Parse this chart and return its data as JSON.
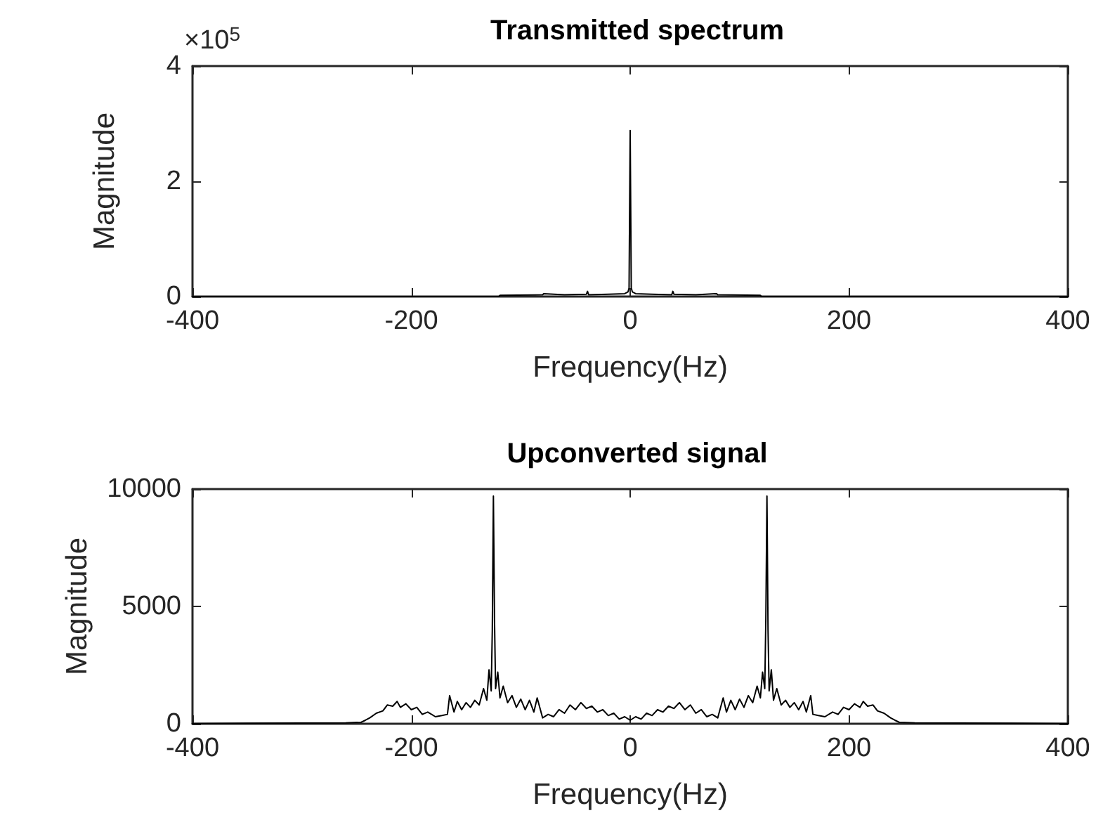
{
  "chart_data": [
    {
      "type": "line",
      "title": "Transmitted spectrum",
      "xlabel": "Frequency(Hz)",
      "ylabel": "Magnitude",
      "annotations": [
        "×10$^{5}$"
      ],
      "x": [
        -400,
        -120,
        -119,
        -80,
        -79,
        -60,
        -40,
        -39,
        -38,
        -20,
        -5,
        -2,
        -1,
        0,
        1,
        2,
        5,
        20,
        38,
        39,
        40,
        60,
        79,
        80,
        119,
        120,
        400
      ],
      "series": [
        {
          "color": "#000000",
          "values": [
            0,
            0,
            0.02,
            0.03,
            0.05,
            0.03,
            0.04,
            0.09,
            0.03,
            0.04,
            0.05,
            0.08,
            0.15,
            2.88,
            0.15,
            0.08,
            0.05,
            0.04,
            0.03,
            0.09,
            0.04,
            0.03,
            0.05,
            0.03,
            0.02,
            0,
            0
          ]
        }
      ],
      "xlim": [
        -400,
        400
      ],
      "xticks": [
        -400,
        -200,
        0,
        200,
        400
      ],
      "ylim": [
        0,
        4
      ],
      "yticks": [
        0,
        2,
        4
      ],
      "grid": false,
      "marker": "none"
    },
    {
      "type": "line",
      "title": "Upconverted signal",
      "xlabel": "Frequency(Hz)",
      "ylabel": "Magnitude",
      "x": [
        -400,
        -350,
        -300,
        -260,
        -246,
        -242,
        -238,
        -232,
        -226,
        -222,
        -217,
        -213,
        -210,
        -205,
        -200,
        -195,
        -190,
        -185,
        -178,
        -172,
        -167,
        -165,
        -161,
        -158,
        -154,
        -150,
        -146,
        -142,
        -138,
        -134,
        -131,
        -129,
        -127,
        -126,
        -125,
        -124,
        -123,
        -121,
        -119,
        -116,
        -112,
        -108,
        -104,
        -100,
        -96,
        -92,
        -88,
        -85,
        -80,
        -75,
        -70,
        -65,
        -60,
        -55,
        -50,
        -45,
        -40,
        -35,
        -30,
        -25,
        -20,
        -15,
        -10,
        -5,
        0,
        5,
        10,
        15,
        20,
        25,
        30,
        35,
        40,
        45,
        50,
        55,
        60,
        65,
        70,
        75,
        80,
        85,
        88,
        92,
        96,
        100,
        104,
        108,
        112,
        116,
        119,
        121,
        123,
        124,
        125,
        126,
        127,
        129,
        131,
        134,
        138,
        142,
        146,
        150,
        154,
        158,
        161,
        165,
        167,
        172,
        178,
        185,
        190,
        195,
        200,
        205,
        210,
        213,
        217,
        222,
        226,
        232,
        238,
        242,
        246,
        260,
        300,
        350,
        400
      ],
      "series": [
        {
          "color": "#000000",
          "values": [
            10,
            20,
            30,
            40,
            60,
            150,
            250,
            450,
            550,
            800,
            750,
            950,
            700,
            850,
            600,
            700,
            400,
            500,
            300,
            350,
            400,
            1200,
            500,
            950,
            600,
            900,
            700,
            1000,
            800,
            1500,
            1000,
            2300,
            1400,
            4000,
            9700,
            4500,
            1500,
            2200,
            1100,
            1600,
            900,
            1200,
            700,
            1050,
            600,
            1000,
            500,
            1100,
            250,
            400,
            300,
            600,
            450,
            800,
            600,
            900,
            650,
            750,
            500,
            600,
            350,
            450,
            200,
            300,
            150,
            300,
            200,
            450,
            350,
            600,
            500,
            750,
            650,
            900,
            600,
            800,
            450,
            600,
            300,
            400,
            250,
            1100,
            500,
            1000,
            600,
            1050,
            700,
            1200,
            900,
            1600,
            1100,
            2200,
            1500,
            4500,
            9700,
            4000,
            1400,
            2300,
            1000,
            1500,
            800,
            1000,
            700,
            900,
            600,
            950,
            500,
            1200,
            400,
            350,
            300,
            500,
            400,
            700,
            600,
            850,
            700,
            950,
            750,
            800,
            550,
            450,
            250,
            150,
            60,
            40,
            30,
            20,
            10
          ]
        }
      ],
      "xlim": [
        -400,
        400
      ],
      "xticks": [
        -400,
        -200,
        0,
        200,
        400
      ],
      "ylim": [
        0,
        10000
      ],
      "yticks": [
        0,
        5000,
        10000
      ],
      "grid": false,
      "marker": "none"
    }
  ]
}
